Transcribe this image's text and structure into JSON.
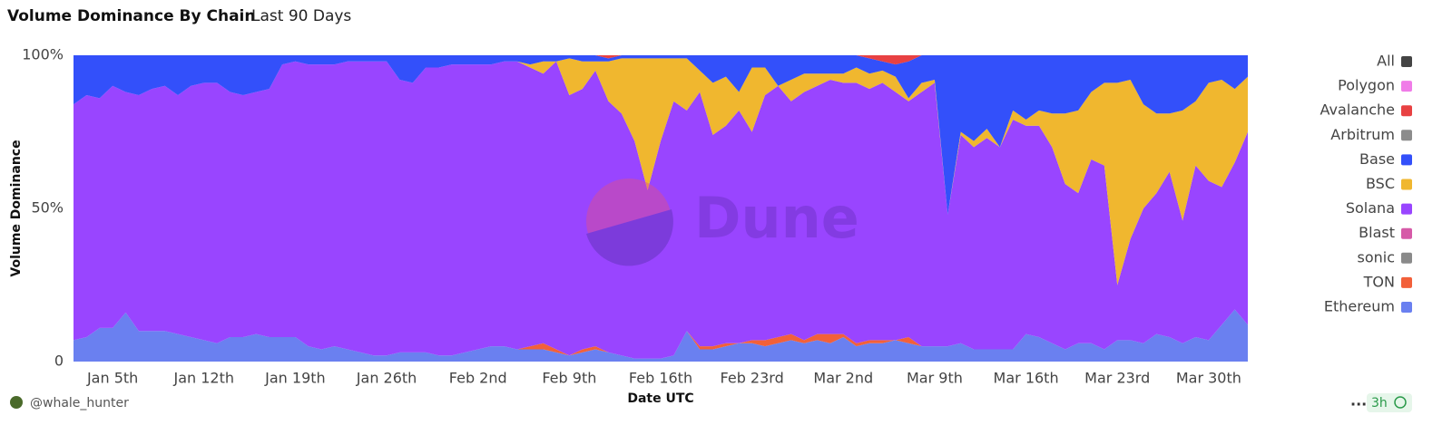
{
  "chart_data": {
    "type": "stacked-area",
    "title": "Volume Dominance By Chain",
    "subtitle": "Last 90 Days",
    "x_label": "Date UTC",
    "y_label": "Volume Dominance",
    "watermark": "Dune",
    "author": "@whale_hunter",
    "age": "3h",
    "menu": "...",
    "ylim": [
      0,
      100
    ],
    "yticks": [
      0,
      {
        "value": 50,
        "label": "50%"
      },
      {
        "value": 100,
        "label": "100%"
      }
    ],
    "grid": false,
    "legend": "right",
    "categories": [
      null,
      null,
      null,
      "Jan 5th",
      null,
      null,
      null,
      null,
      null,
      null,
      "Jan 12th",
      null,
      null,
      null,
      null,
      null,
      null,
      "Jan 19th",
      null,
      null,
      null,
      null,
      null,
      null,
      "Jan 26th",
      null,
      null,
      null,
      null,
      null,
      null,
      "Feb 2nd",
      null,
      null,
      null,
      null,
      null,
      null,
      "Feb 9th",
      null,
      null,
      null,
      null,
      null,
      null,
      "Feb 16th",
      null,
      null,
      null,
      null,
      null,
      null,
      "Feb 23rd",
      null,
      null,
      null,
      null,
      null,
      null,
      "Mar 2nd",
      null,
      null,
      null,
      null,
      null,
      null,
      "Mar 9th",
      null,
      null,
      null,
      null,
      null,
      null,
      "Mar 16th",
      null,
      null,
      null,
      null,
      null,
      null,
      "Mar 23rd",
      null,
      null,
      null,
      null,
      null,
      null,
      "Mar 30th",
      null,
      null,
      null
    ],
    "series": [
      {
        "name": "Ethereum",
        "color": "#6a80f0",
        "values": [
          7,
          8,
          11,
          11,
          16,
          10,
          10,
          10,
          9,
          8,
          7,
          6,
          8,
          8,
          9,
          8,
          8,
          8,
          5,
          4,
          5,
          4,
          3,
          2,
          2,
          3,
          3,
          3,
          2,
          2,
          3,
          4,
          5,
          5,
          4,
          4,
          4,
          3,
          2,
          3,
          4,
          3,
          2,
          1,
          1,
          1,
          2,
          10,
          4,
          4,
          5,
          6,
          6,
          5,
          6,
          7,
          6,
          7,
          6,
          8,
          5,
          6,
          6,
          7,
          6,
          5,
          5,
          5,
          6,
          4,
          4,
          4,
          4,
          9,
          8,
          6,
          4,
          6,
          6,
          4,
          7,
          7,
          6,
          9,
          8,
          6,
          8,
          7,
          12,
          17,
          12
        ]
      },
      {
        "name": "TON",
        "color": "#f2603a",
        "values": [
          0,
          0,
          0,
          0,
          0,
          0,
          0,
          0,
          0,
          0,
          0,
          0,
          0,
          0,
          0,
          0,
          0,
          0,
          0,
          0,
          0,
          0,
          0,
          0,
          0,
          0,
          0,
          0,
          0,
          0,
          0,
          0,
          0,
          0,
          0,
          1,
          2,
          1,
          0,
          1,
          1,
          0,
          0,
          0,
          0,
          0,
          0,
          0,
          1,
          1,
          1,
          0,
          1,
          2,
          2,
          2,
          1,
          2,
          3,
          1,
          1,
          1,
          1,
          0,
          2,
          0,
          0,
          0,
          0,
          0,
          0,
          0,
          0,
          0,
          0,
          0,
          0,
          0,
          0,
          0,
          0,
          0,
          0,
          0,
          0,
          0,
          0,
          0,
          0,
          0,
          0
        ]
      },
      {
        "name": "sonic",
        "color": "#8a8a8a",
        "values": [
          0,
          0,
          0,
          0,
          0,
          0,
          0,
          0,
          0,
          0,
          0,
          0,
          0,
          0,
          0,
          0,
          0,
          0,
          0,
          0,
          0,
          0,
          0,
          0,
          0,
          0,
          0,
          0,
          0,
          0,
          0,
          0,
          0,
          0,
          0,
          0,
          0,
          0,
          0,
          0,
          0,
          0,
          0,
          0,
          0,
          0,
          0,
          0,
          0,
          0,
          0,
          0,
          0,
          0,
          0,
          0,
          0,
          0,
          0,
          0,
          0,
          0,
          0,
          0,
          0,
          0,
          0,
          0,
          0,
          0,
          0,
          0,
          0,
          0,
          0,
          0,
          0,
          0,
          0,
          0,
          0,
          0,
          0,
          0,
          0,
          0,
          0,
          0,
          0,
          0,
          0
        ]
      },
      {
        "name": "Blast",
        "color": "#d65aa8",
        "values": [
          0,
          0,
          0,
          0,
          0,
          0,
          0,
          0,
          0,
          0,
          0,
          0,
          0,
          0,
          0,
          0,
          0,
          0,
          0,
          0,
          0,
          0,
          0,
          0,
          0,
          0,
          0,
          0,
          0,
          0,
          0,
          0,
          0,
          0,
          0,
          0,
          0,
          0,
          0,
          0,
          0,
          0,
          0,
          0,
          0,
          0,
          0,
          0,
          0,
          0,
          0,
          0,
          0,
          0,
          0,
          0,
          0,
          0,
          0,
          0,
          0,
          0,
          0,
          0,
          0,
          0,
          0,
          0,
          0,
          0,
          0,
          0,
          0,
          0,
          0,
          0,
          0,
          0,
          0,
          0,
          0,
          0,
          0,
          0,
          0,
          0,
          0,
          0,
          0,
          0,
          0
        ]
      },
      {
        "name": "Solana",
        "color": "#9945ff",
        "values": [
          77,
          79,
          75,
          79,
          72,
          77,
          79,
          80,
          78,
          82,
          84,
          85,
          80,
          79,
          79,
          81,
          89,
          90,
          92,
          93,
          92,
          94,
          95,
          96,
          96,
          89,
          88,
          93,
          94,
          95,
          94,
          93,
          92,
          93,
          94,
          91,
          88,
          94,
          85,
          85,
          90,
          82,
          79,
          71,
          55,
          71,
          83,
          72,
          83,
          69,
          71,
          76,
          68,
          80,
          82,
          76,
          81,
          81,
          83,
          82,
          85,
          82,
          84,
          81,
          77,
          83,
          86,
          43,
          68,
          66,
          69,
          66,
          75,
          68,
          69,
          64,
          54,
          49,
          60,
          60,
          18,
          33,
          44,
          46,
          54,
          40,
          56,
          52,
          45,
          48,
          63
        ]
      },
      {
        "name": "BSC",
        "color": "#f0b72f",
        "values": [
          0,
          0,
          0,
          0,
          0,
          0,
          0,
          0,
          0,
          0,
          0,
          0,
          0,
          0,
          0,
          0,
          0,
          0,
          0,
          0,
          0,
          0,
          0,
          0,
          0,
          0,
          0,
          0,
          0,
          0,
          0,
          0,
          0,
          0,
          0,
          1,
          4,
          0,
          12,
          9,
          3,
          13,
          18,
          27,
          43,
          27,
          14,
          17,
          7,
          17,
          16,
          6,
          21,
          9,
          0,
          7,
          6,
          4,
          2,
          3,
          5,
          5,
          4,
          5,
          1,
          3,
          1,
          0,
          1,
          2,
          3,
          0,
          3,
          2,
          5,
          11,
          23,
          27,
          22,
          27,
          66,
          52,
          34,
          26,
          19,
          36,
          21,
          32,
          35,
          24,
          18
        ]
      },
      {
        "name": "Base",
        "color": "#3350fa",
        "values": [
          16,
          13,
          14,
          10,
          12,
          13,
          11,
          10,
          13,
          10,
          9,
          9,
          12,
          13,
          12,
          11,
          3,
          2,
          3,
          3,
          3,
          2,
          2,
          2,
          2,
          8,
          9,
          4,
          4,
          3,
          3,
          3,
          3,
          2,
          2,
          3,
          2,
          2,
          1,
          2,
          2,
          1,
          1,
          1,
          1,
          1,
          1,
          1,
          5,
          9,
          7,
          12,
          4,
          4,
          10,
          8,
          6,
          6,
          6,
          6,
          4,
          5,
          3,
          4,
          12,
          9,
          8,
          52,
          25,
          28,
          24,
          30,
          18,
          21,
          18,
          19,
          19,
          18,
          12,
          9,
          9,
          8,
          16,
          19,
          19,
          18,
          15,
          9,
          8,
          11,
          7
        ]
      },
      {
        "name": "Arbitrum",
        "color": "#8c8c8c",
        "values": [
          0,
          0,
          0,
          0,
          0,
          0,
          0,
          0,
          0,
          0,
          0,
          0,
          0,
          0,
          0,
          0,
          0,
          0,
          0,
          0,
          0,
          0,
          0,
          0,
          0,
          0,
          0,
          0,
          0,
          0,
          0,
          0,
          0,
          0,
          0,
          0,
          0,
          0,
          0,
          0,
          0,
          0,
          0,
          0,
          0,
          0,
          0,
          0,
          0,
          0,
          0,
          0,
          0,
          0,
          0,
          0,
          0,
          0,
          0,
          0,
          0,
          0,
          0,
          0,
          0,
          0,
          0,
          0,
          0,
          0,
          0,
          0,
          0,
          0,
          0,
          0,
          0,
          0,
          0,
          0,
          0,
          0,
          0,
          0,
          0,
          0,
          0,
          0,
          0,
          0,
          0
        ]
      },
      {
        "name": "Avalanche",
        "color": "#e84142",
        "values": [
          0,
          0,
          0,
          0,
          0,
          0,
          0,
          0,
          0,
          0,
          0,
          0,
          0,
          0,
          0,
          0,
          0,
          0,
          0,
          0,
          0,
          0,
          0,
          0,
          0,
          0,
          0,
          0,
          0,
          0,
          0,
          0,
          0,
          0,
          0,
          0,
          0,
          0,
          0,
          0,
          0,
          1,
          0,
          0,
          0,
          0,
          0,
          0,
          0,
          0,
          0,
          0,
          0,
          0,
          0,
          0,
          0,
          0,
          0,
          0,
          0,
          1,
          2,
          3,
          2,
          0,
          0,
          0,
          0,
          0,
          0,
          0,
          0,
          0,
          0,
          0,
          0,
          0,
          0,
          0,
          0,
          0,
          0,
          0,
          0,
          0,
          0,
          0,
          0,
          0,
          0
        ]
      },
      {
        "name": "Polygon",
        "color": "#f07ce8",
        "values": [
          0,
          0,
          0,
          0,
          0,
          0,
          0,
          0,
          0,
          0,
          0,
          0,
          0,
          0,
          0,
          0,
          0,
          0,
          0,
          0,
          0,
          0,
          0,
          0,
          0,
          0,
          0,
          0,
          0,
          0,
          0,
          0,
          0,
          0,
          0,
          0,
          0,
          0,
          0,
          0,
          0,
          0,
          0,
          0,
          0,
          0,
          0,
          0,
          0,
          0,
          0,
          0,
          0,
          0,
          0,
          0,
          0,
          0,
          0,
          0,
          0,
          0,
          0,
          0,
          0,
          0,
          0,
          0,
          0,
          0,
          0,
          0,
          0,
          0,
          0,
          0,
          0,
          0,
          0,
          0,
          0,
          0,
          0,
          0,
          0,
          0,
          0,
          0,
          0,
          0,
          0
        ]
      },
      {
        "name": "All",
        "color": "#444444",
        "values": [
          0,
          0,
          0,
          0,
          0,
          0,
          0,
          0,
          0,
          0,
          0,
          0,
          0,
          0,
          0,
          0,
          0,
          0,
          0,
          0,
          0,
          0,
          0,
          0,
          0,
          0,
          0,
          0,
          0,
          0,
          0,
          0,
          0,
          0,
          0,
          0,
          0,
          0,
          0,
          0,
          0,
          0,
          0,
          0,
          0,
          0,
          0,
          0,
          0,
          0,
          0,
          0,
          0,
          0,
          0,
          0,
          0,
          0,
          0,
          0,
          0,
          0,
          0,
          0,
          0,
          0,
          0,
          0,
          0,
          0,
          0,
          0,
          0,
          0,
          0,
          0,
          0,
          0,
          0,
          0,
          0,
          0,
          0,
          0,
          0,
          0,
          0,
          0,
          0,
          0,
          0
        ]
      }
    ]
  }
}
